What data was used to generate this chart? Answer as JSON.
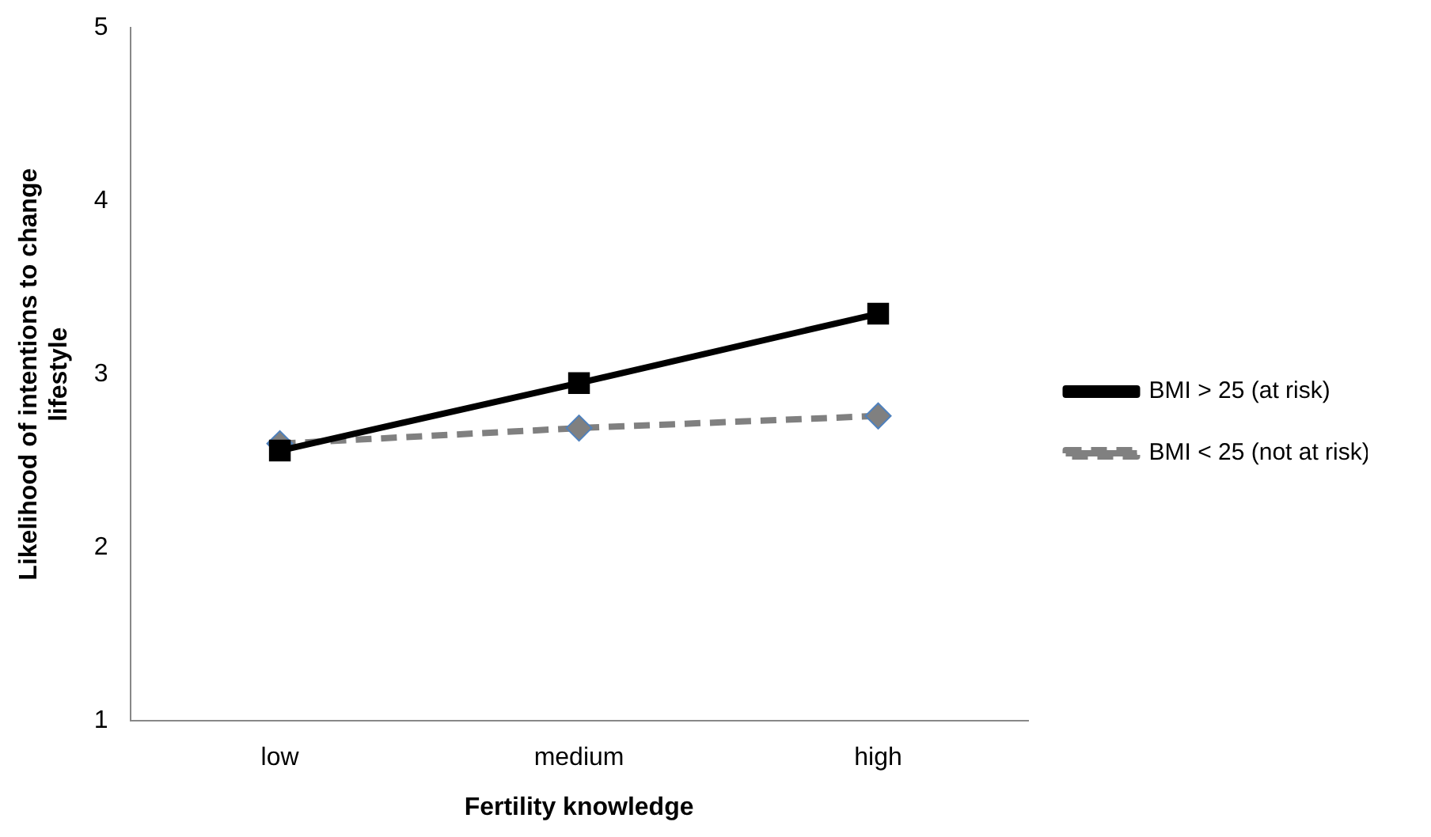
{
  "chart_data": {
    "type": "line",
    "xlabel": "Fertility knowledge",
    "ylabel": "Likelihood of intentions to change lifestyle",
    "categories": [
      "low",
      "medium",
      "high"
    ],
    "series": [
      {
        "name": "BMI < 25 (not at risk)",
        "color": "#808080",
        "values": [
          2.6,
          2.69,
          2.76
        ],
        "marker": "diamond",
        "line_style": "dashed"
      },
      {
        "name": "BMI > 25 (at risk)",
        "color": "#000000",
        "values": [
          2.56,
          2.95,
          3.35
        ],
        "marker": "square",
        "line_style": "solid"
      }
    ],
    "ylim": [
      1,
      5
    ],
    "yticks": [
      1,
      2,
      3,
      4,
      5
    ],
    "grid": false,
    "legend": "right"
  }
}
